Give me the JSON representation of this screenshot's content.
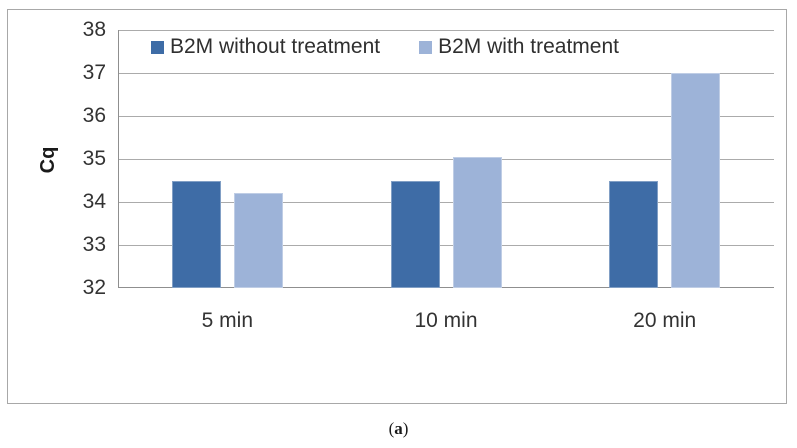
{
  "figure": {
    "caption_open": "(",
    "caption_letter": "a",
    "caption_close": ")"
  },
  "chart_data": {
    "type": "bar",
    "title": "",
    "categories": [
      "5 min",
      "10 min",
      "20 min"
    ],
    "series": [
      {
        "name": "B2M without treatment",
        "color": "#3E6CA6",
        "values": [
          34.5,
          34.5,
          34.5
        ]
      },
      {
        "name": "B2M with treatment",
        "color": "#9DB3D8",
        "values": [
          34.2,
          35.05,
          37.0
        ]
      }
    ],
    "xlabel": "",
    "ylabel": "Cq",
    "ylim": [
      32,
      38
    ],
    "yticks": [
      38,
      37,
      36,
      35,
      34,
      33,
      32
    ],
    "grid": true,
    "legend_position": "top-inside"
  }
}
